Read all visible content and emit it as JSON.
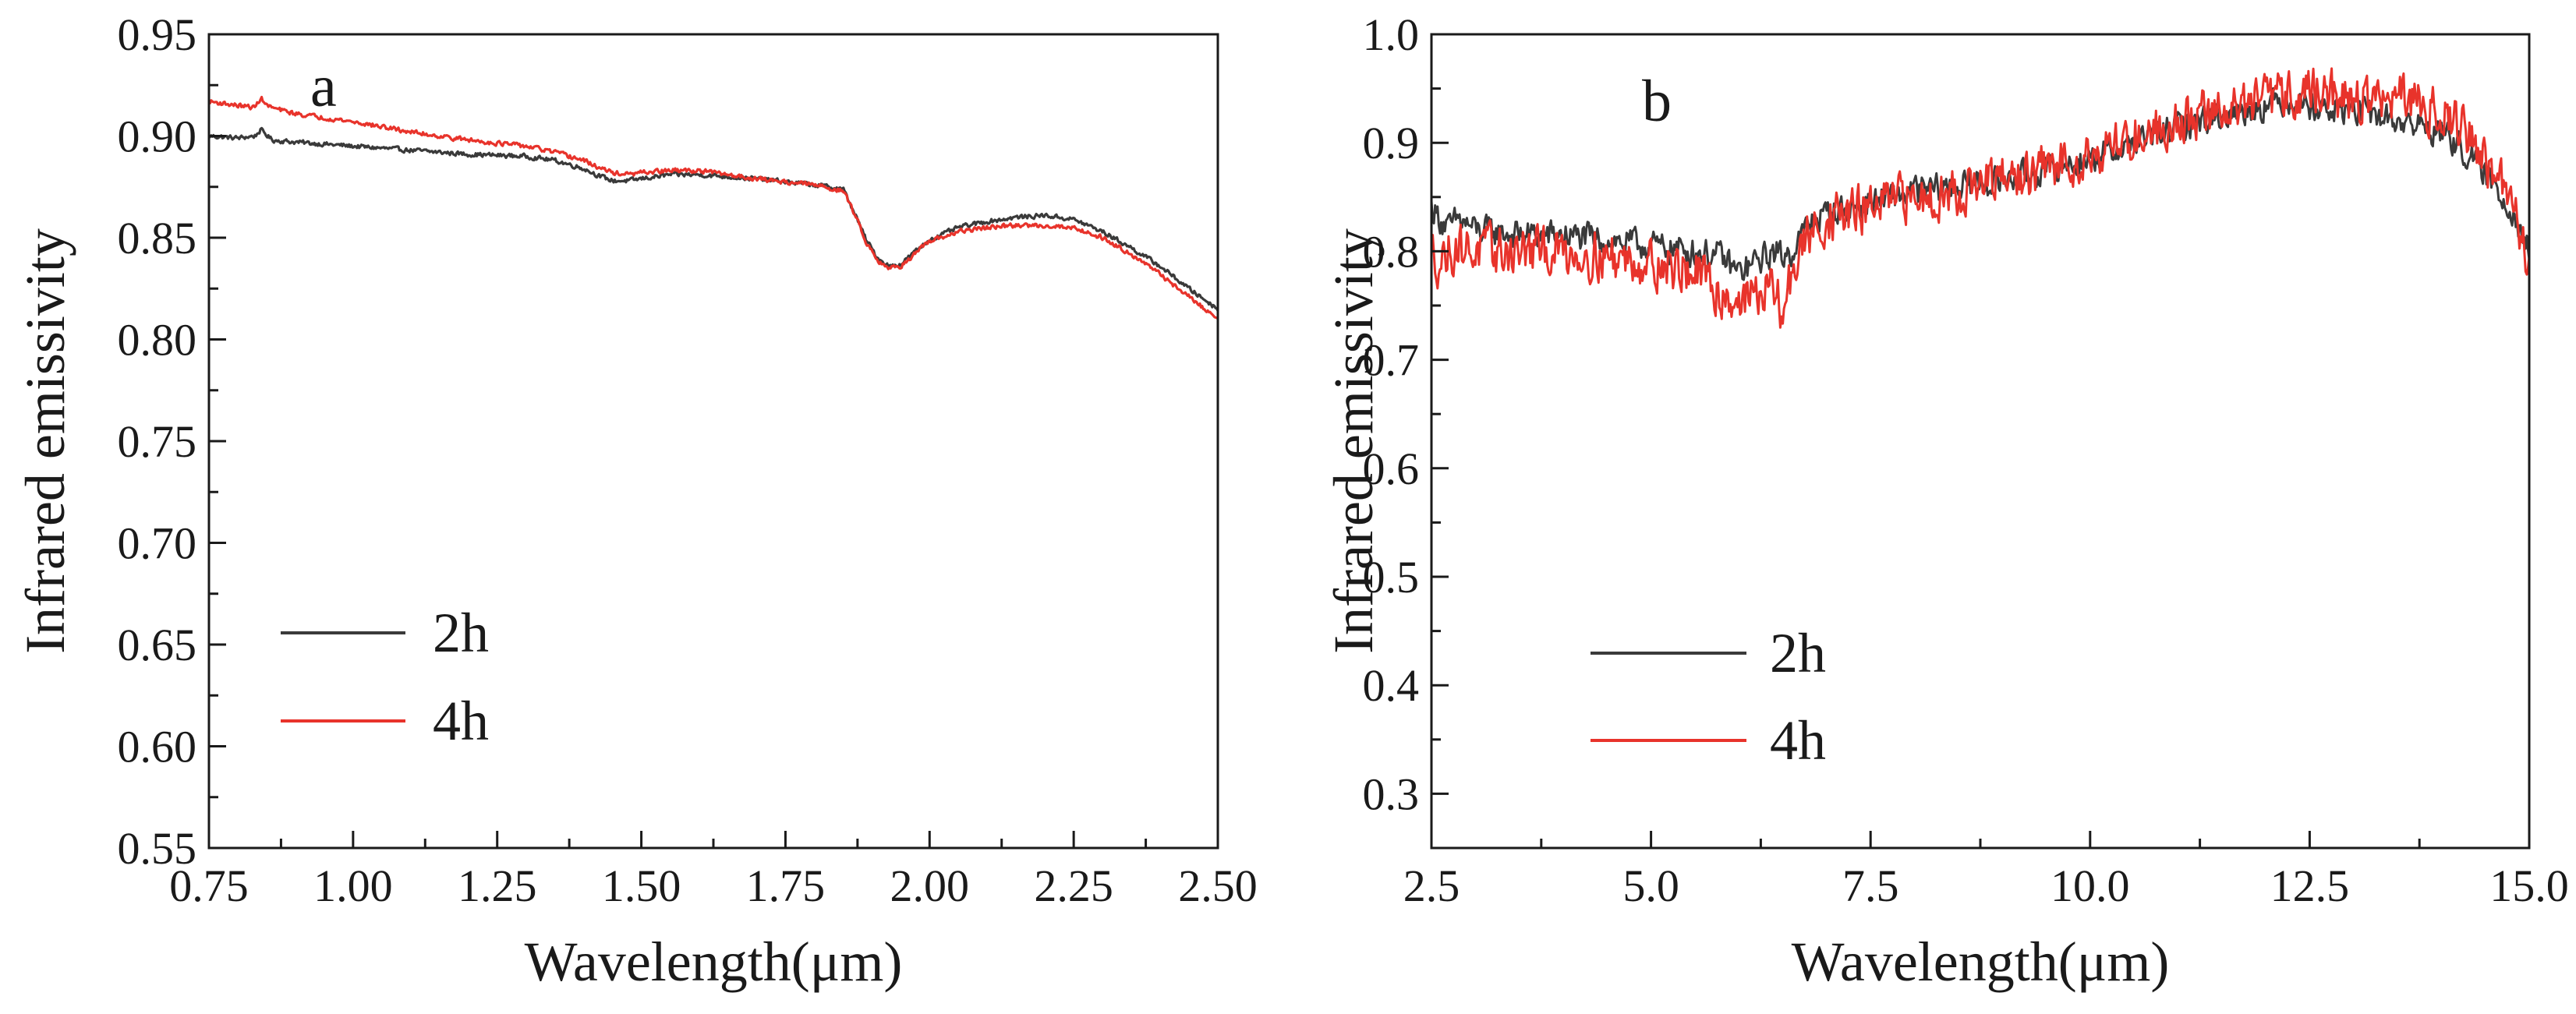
{
  "chart_data": [
    {
      "panel": "a",
      "type": "line",
      "xlabel": "Wavelength(μm)",
      "ylabel": "Infrared emissivity",
      "xlim": [
        0.75,
        2.5
      ],
      "ylim": [
        0.55,
        0.95
      ],
      "xticks": [
        0.75,
        1.0,
        1.25,
        1.5,
        1.75,
        2.0,
        2.25,
        2.5
      ],
      "xtick_labels": [
        "0.75",
        "1.00",
        "1.25",
        "1.50",
        "1.75",
        "2.00",
        "2.25",
        "2.50"
      ],
      "yticks": [
        0.55,
        0.6,
        0.65,
        0.7,
        0.75,
        0.8,
        0.85,
        0.9,
        0.95
      ],
      "ytick_labels": [
        "0.55",
        "0.60",
        "0.65",
        "0.70",
        "0.75",
        "0.80",
        "0.85",
        "0.90",
        "0.95"
      ],
      "legend": "center-left",
      "series": [
        {
          "name": "2h",
          "color": "#3a3a3a",
          "noise": 0.001,
          "x": [
            0.75,
            0.8,
            0.83,
            0.84,
            0.86,
            0.9,
            1.0,
            1.1,
            1.2,
            1.3,
            1.35,
            1.4,
            1.43,
            1.45,
            1.48,
            1.5,
            1.55,
            1.6,
            1.7,
            1.8,
            1.85,
            1.87,
            1.89,
            1.91,
            1.93,
            1.95,
            1.97,
            2.0,
            2.05,
            2.1,
            2.15,
            2.2,
            2.25,
            2.3,
            2.35,
            2.4,
            2.45,
            2.5
          ],
          "y": [
            0.9,
            0.899,
            0.9,
            0.903,
            0.898,
            0.897,
            0.895,
            0.893,
            0.891,
            0.89,
            0.888,
            0.884,
            0.88,
            0.878,
            0.878,
            0.879,
            0.881,
            0.881,
            0.879,
            0.876,
            0.874,
            0.862,
            0.849,
            0.84,
            0.836,
            0.837,
            0.842,
            0.849,
            0.855,
            0.858,
            0.86,
            0.861,
            0.859,
            0.853,
            0.845,
            0.836,
            0.825,
            0.815
          ]
        },
        {
          "name": "4h",
          "color": "#e8332b",
          "noise": 0.001,
          "x": [
            0.75,
            0.8,
            0.83,
            0.84,
            0.85,
            0.87,
            0.9,
            1.0,
            1.1,
            1.2,
            1.3,
            1.35,
            1.4,
            1.43,
            1.45,
            1.48,
            1.5,
            1.55,
            1.6,
            1.7,
            1.8,
            1.85,
            1.87,
            1.89,
            1.91,
            1.93,
            1.95,
            1.97,
            2.0,
            2.05,
            2.1,
            2.15,
            2.2,
            2.25,
            2.3,
            2.35,
            2.4,
            2.45,
            2.5
          ],
          "y": [
            0.917,
            0.915,
            0.914,
            0.919,
            0.915,
            0.913,
            0.911,
            0.907,
            0.902,
            0.898,
            0.895,
            0.892,
            0.888,
            0.884,
            0.882,
            0.881,
            0.882,
            0.883,
            0.883,
            0.879,
            0.876,
            0.873,
            0.862,
            0.848,
            0.839,
            0.835,
            0.836,
            0.841,
            0.848,
            0.853,
            0.855,
            0.856,
            0.856,
            0.855,
            0.85,
            0.842,
            0.832,
            0.821,
            0.81
          ]
        }
      ]
    },
    {
      "panel": "b",
      "type": "line",
      "xlabel": "Wavelength(μm)",
      "ylabel": "Infrared emissivity",
      "xlim": [
        2.5,
        15.0
      ],
      "ylim": [
        0.25,
        1.0
      ],
      "xticks": [
        2.5,
        5.0,
        7.5,
        10.0,
        12.5,
        15.0
      ],
      "xtick_labels": [
        "2.5",
        "5.0",
        "7.5",
        "10.0",
        "12.5",
        "15.0"
      ],
      "yticks": [
        0.3,
        0.4,
        0.5,
        0.6,
        0.7,
        0.8,
        0.9,
        1.0
      ],
      "ytick_labels": [
        "0.3",
        "0.4",
        "0.5",
        "0.6",
        "0.7",
        "0.8",
        "0.9",
        "1.0"
      ],
      "legend": "lower-left",
      "series": [
        {
          "name": "2h",
          "color": "#3a3a3a",
          "noise": 0.012,
          "x": [
            2.5,
            2.6,
            2.7,
            2.8,
            3.0,
            3.5,
            4.0,
            4.5,
            5.0,
            5.5,
            5.8,
            6.0,
            6.2,
            6.4,
            6.5,
            6.6,
            6.8,
            7.0,
            7.5,
            8.0,
            8.5,
            9.0,
            9.5,
            10.0,
            10.5,
            11.0,
            11.5,
            12.0,
            12.3,
            12.5,
            12.7,
            13.0,
            13.5,
            14.0,
            14.3,
            14.6,
            14.8,
            15.0
          ],
          "y": [
            0.84,
            0.83,
            0.82,
            0.83,
            0.82,
            0.815,
            0.815,
            0.81,
            0.805,
            0.8,
            0.795,
            0.78,
            0.79,
            0.8,
            0.795,
            0.8,
            0.825,
            0.835,
            0.845,
            0.855,
            0.86,
            0.865,
            0.875,
            0.885,
            0.9,
            0.915,
            0.925,
            0.935,
            0.94,
            0.935,
            0.93,
            0.93,
            0.92,
            0.91,
            0.89,
            0.86,
            0.84,
            0.8
          ]
        },
        {
          "name": "4h",
          "color": "#e8332b",
          "noise": 0.02,
          "x": [
            2.5,
            2.6,
            2.7,
            2.8,
            3.0,
            3.5,
            4.0,
            4.5,
            5.0,
            5.5,
            5.8,
            6.0,
            6.2,
            6.4,
            6.5,
            6.6,
            6.8,
            7.0,
            7.5,
            8.0,
            8.5,
            9.0,
            9.5,
            10.0,
            10.5,
            11.0,
            11.5,
            12.0,
            12.3,
            12.5,
            12.7,
            13.0,
            13.5,
            14.0,
            14.3,
            14.6,
            14.8,
            15.0
          ],
          "y": [
            0.8,
            0.79,
            0.8,
            0.805,
            0.8,
            0.8,
            0.8,
            0.795,
            0.79,
            0.78,
            0.76,
            0.755,
            0.76,
            0.765,
            0.74,
            0.78,
            0.815,
            0.83,
            0.84,
            0.85,
            0.855,
            0.865,
            0.875,
            0.89,
            0.905,
            0.92,
            0.93,
            0.94,
            0.945,
            0.95,
            0.945,
            0.94,
            0.94,
            0.93,
            0.91,
            0.87,
            0.845,
            0.79
          ]
        }
      ]
    }
  ]
}
